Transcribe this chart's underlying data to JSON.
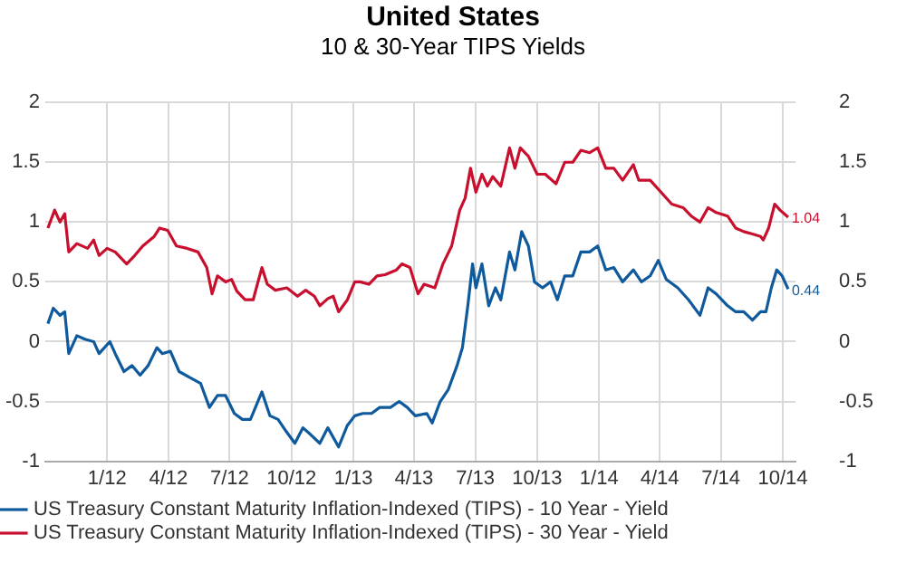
{
  "chart_data": {
    "type": "line",
    "title": "United States",
    "subtitle": "10 & 30-Year TIPS Yields",
    "xlim": [
      "2011-10-01",
      "2014-10-20"
    ],
    "xticks": [
      {
        "value": "2012-01-01",
        "label": "1/12"
      },
      {
        "value": "2012-04-01",
        "label": "4/12"
      },
      {
        "value": "2012-07-01",
        "label": "7/12"
      },
      {
        "value": "2012-10-01",
        "label": "10/12"
      },
      {
        "value": "2013-01-01",
        "label": "1/13"
      },
      {
        "value": "2013-04-01",
        "label": "4/13"
      },
      {
        "value": "2013-07-01",
        "label": "7/13"
      },
      {
        "value": "2013-10-01",
        "label": "10/13"
      },
      {
        "value": "2014-01-01",
        "label": "1/14"
      },
      {
        "value": "2014-04-01",
        "label": "4/14"
      },
      {
        "value": "2014-07-01",
        "label": "7/14"
      },
      {
        "value": "2014-10-01",
        "label": "10/14"
      }
    ],
    "ylim": [
      -1,
      2
    ],
    "yticks": [
      -1,
      -0.5,
      0,
      0.5,
      1,
      1.5,
      2
    ],
    "y2lim": [
      -1,
      2
    ],
    "y2ticks": [
      -1,
      -0.5,
      0,
      0.5,
      1,
      1.5,
      2
    ],
    "grid": true,
    "legend": "bottom",
    "marker": "none",
    "line_style": "solid",
    "series": [
      {
        "name": "US Treasury Constant Maturity Inflation-Indexed (TIPS) - 10 Year - Yield",
        "color": "#0f5a9c",
        "x": [
          "2011-10-05",
          "2011-10-13",
          "2011-10-23",
          "2011-10-30",
          "2011-11-05",
          "2011-11-17",
          "2011-11-29",
          "2011-12-12",
          "2011-12-20",
          "2012-01-05",
          "2012-01-13",
          "2012-01-26",
          "2012-02-07",
          "2012-02-19",
          "2012-03-02",
          "2012-03-15",
          "2012-03-23",
          "2012-04-04",
          "2012-04-17",
          "2012-05-03",
          "2012-05-19",
          "2012-06-01",
          "2012-06-13",
          "2012-06-25",
          "2012-07-08",
          "2012-07-20",
          "2012-08-01",
          "2012-08-18",
          "2012-08-30",
          "2012-09-11",
          "2012-09-23",
          "2012-10-06",
          "2012-10-18",
          "2012-10-30",
          "2012-11-12",
          "2012-11-24",
          "2012-12-10",
          "2012-12-23",
          "2013-01-03",
          "2013-01-15",
          "2013-01-28",
          "2013-02-09",
          "2013-02-25",
          "2013-03-10",
          "2013-03-22",
          "2013-04-03",
          "2013-04-20",
          "2013-04-28",
          "2013-05-10",
          "2013-05-22",
          "2013-06-04",
          "2013-06-12",
          "2013-06-20",
          "2013-06-27",
          "2013-07-02",
          "2013-07-11",
          "2013-07-21",
          "2013-07-31",
          "2013-08-08",
          "2013-08-21",
          "2013-08-29",
          "2013-09-08",
          "2013-09-18",
          "2013-09-27",
          "2013-10-09",
          "2013-10-21",
          "2013-10-31",
          "2013-11-11",
          "2013-11-23",
          "2013-12-05",
          "2013-12-18",
          "2013-12-30",
          "2014-01-11",
          "2014-01-23",
          "2014-02-05",
          "2014-02-21",
          "2014-03-05",
          "2014-03-18",
          "2014-03-30",
          "2014-04-11",
          "2014-04-28",
          "2014-05-14",
          "2014-05-31",
          "2014-06-12",
          "2014-06-24",
          "2014-07-11",
          "2014-07-23",
          "2014-08-04",
          "2014-08-17",
          "2014-08-29",
          "2014-09-06",
          "2014-09-14",
          "2014-09-22",
          "2014-09-30",
          "2014-10-09"
        ],
        "values": [
          0.15,
          0.28,
          0.22,
          0.25,
          -0.1,
          0.05,
          0.02,
          0.0,
          -0.1,
          0.0,
          -0.1,
          -0.25,
          -0.2,
          -0.28,
          -0.2,
          -0.05,
          -0.1,
          -0.08,
          -0.25,
          -0.3,
          -0.35,
          -0.55,
          -0.45,
          -0.45,
          -0.6,
          -0.65,
          -0.65,
          -0.42,
          -0.62,
          -0.65,
          -0.75,
          -0.85,
          -0.72,
          -0.78,
          -0.85,
          -0.72,
          -0.88,
          -0.7,
          -0.62,
          -0.6,
          -0.6,
          -0.55,
          -0.55,
          -0.5,
          -0.55,
          -0.62,
          -0.6,
          -0.68,
          -0.5,
          -0.4,
          -0.2,
          -0.05,
          0.3,
          0.65,
          0.45,
          0.65,
          0.3,
          0.45,
          0.35,
          0.75,
          0.6,
          0.92,
          0.8,
          0.5,
          0.45,
          0.5,
          0.35,
          0.55,
          0.55,
          0.75,
          0.75,
          0.8,
          0.6,
          0.62,
          0.5,
          0.6,
          0.5,
          0.55,
          0.68,
          0.52,
          0.45,
          0.35,
          0.22,
          0.45,
          0.4,
          0.3,
          0.25,
          0.25,
          0.18,
          0.25,
          0.25,
          0.45,
          0.6,
          0.55,
          0.44
        ]
      },
      {
        "name": "US Treasury Constant Maturity Inflation-Indexed (TIPS) - 30 Year - Yield",
        "color": "#c8102e",
        "x": [
          "2011-10-05",
          "2011-10-15",
          "2011-10-23",
          "2011-10-30",
          "2011-11-05",
          "2011-11-17",
          "2011-12-03",
          "2011-12-12",
          "2011-12-20",
          "2012-01-01",
          "2012-01-13",
          "2012-01-30",
          "2012-02-11",
          "2012-02-23",
          "2012-03-11",
          "2012-03-19",
          "2012-03-31",
          "2012-04-13",
          "2012-04-29",
          "2012-05-15",
          "2012-05-28",
          "2012-06-05",
          "2012-06-13",
          "2012-06-25",
          "2012-07-04",
          "2012-07-12",
          "2012-07-24",
          "2012-08-05",
          "2012-08-18",
          "2012-08-26",
          "2012-09-07",
          "2012-09-24",
          "2012-10-10",
          "2012-10-22",
          "2012-11-04",
          "2012-11-12",
          "2012-11-24",
          "2012-12-02",
          "2012-12-10",
          "2012-12-23",
          "2013-01-03",
          "2013-01-11",
          "2013-01-24",
          "2013-02-05",
          "2013-02-17",
          "2013-03-06",
          "2013-03-14",
          "2013-03-26",
          "2013-04-07",
          "2013-04-16",
          "2013-05-02",
          "2013-05-14",
          "2013-05-27",
          "2013-06-08",
          "2013-06-16",
          "2013-06-24",
          "2013-07-02",
          "2013-07-11",
          "2013-07-19",
          "2013-07-27",
          "2013-08-08",
          "2013-08-21",
          "2013-08-29",
          "2013-09-06",
          "2013-09-18",
          "2013-10-01",
          "2013-10-13",
          "2013-10-29",
          "2013-11-11",
          "2013-11-23",
          "2013-12-05",
          "2013-12-18",
          "2013-12-30",
          "2014-01-11",
          "2014-01-23",
          "2014-02-05",
          "2014-02-21",
          "2014-03-01",
          "2014-03-18",
          "2014-04-03",
          "2014-04-19",
          "2014-05-06",
          "2014-05-18",
          "2014-05-31",
          "2014-06-12",
          "2014-06-24",
          "2014-07-11",
          "2014-07-23",
          "2014-08-04",
          "2014-08-17",
          "2014-08-29",
          "2014-09-02",
          "2014-09-10",
          "2014-09-19",
          "2014-09-27",
          "2014-10-09"
        ],
        "values": [
          0.95,
          1.1,
          1.0,
          1.07,
          0.75,
          0.82,
          0.78,
          0.85,
          0.72,
          0.78,
          0.75,
          0.65,
          0.72,
          0.8,
          0.88,
          0.95,
          0.93,
          0.8,
          0.78,
          0.75,
          0.62,
          0.4,
          0.55,
          0.5,
          0.52,
          0.42,
          0.35,
          0.35,
          0.62,
          0.48,
          0.43,
          0.45,
          0.38,
          0.43,
          0.38,
          0.3,
          0.36,
          0.38,
          0.25,
          0.35,
          0.5,
          0.5,
          0.48,
          0.55,
          0.56,
          0.6,
          0.65,
          0.62,
          0.4,
          0.48,
          0.45,
          0.65,
          0.8,
          1.1,
          1.2,
          1.45,
          1.25,
          1.4,
          1.3,
          1.38,
          1.3,
          1.62,
          1.45,
          1.62,
          1.55,
          1.4,
          1.4,
          1.32,
          1.5,
          1.5,
          1.6,
          1.58,
          1.62,
          1.45,
          1.45,
          1.35,
          1.48,
          1.35,
          1.35,
          1.25,
          1.15,
          1.12,
          1.05,
          1.0,
          1.12,
          1.08,
          1.05,
          0.95,
          0.92,
          0.9,
          0.88,
          0.85,
          0.95,
          1.15,
          1.1,
          1.04
        ]
      }
    ],
    "annotations": [
      {
        "text": "0.44",
        "x": "2014-10-09",
        "y": 0.44
      },
      {
        "text": "1.04",
        "x": "2014-10-09",
        "y": 1.04
      }
    ]
  }
}
